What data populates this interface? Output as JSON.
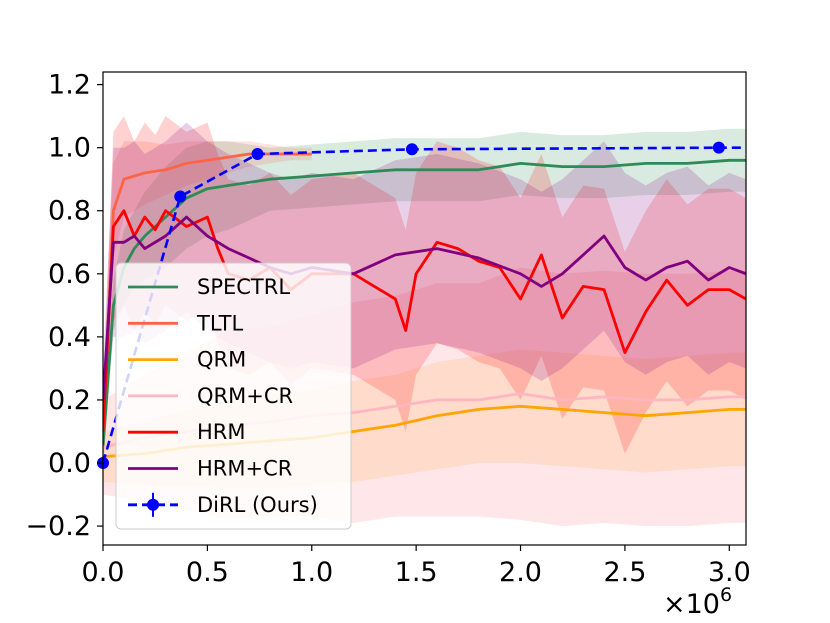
{
  "chart_data": {
    "type": "line",
    "title": "",
    "xlabel": "",
    "ylabel": "",
    "x_multiplier": "×10^6",
    "xlim": [
      0,
      3.08
    ],
    "ylim": [
      -0.26,
      1.24
    ],
    "x_ticks": [
      "0.0",
      "0.5",
      "1.0",
      "1.5",
      "2.0",
      "2.5",
      "3.0"
    ],
    "y_ticks": [
      "−0.2",
      "0.0",
      "0.2",
      "0.4",
      "0.6",
      "0.8",
      "1.0",
      "1.2"
    ],
    "legend_position": "lower-left",
    "grid": false,
    "series": [
      {
        "name": "SPECTRL",
        "color": "#2e8b57",
        "x": [
          0.0,
          0.05,
          0.1,
          0.15,
          0.2,
          0.3,
          0.4,
          0.5,
          0.6,
          0.7,
          0.8,
          1.0,
          1.2,
          1.4,
          1.6,
          1.8,
          2.0,
          2.2,
          2.4,
          2.6,
          2.8,
          3.0,
          3.08
        ],
        "y": [
          0.05,
          0.5,
          0.62,
          0.68,
          0.72,
          0.78,
          0.84,
          0.87,
          0.88,
          0.89,
          0.9,
          0.91,
          0.92,
          0.93,
          0.93,
          0.93,
          0.95,
          0.94,
          0.94,
          0.95,
          0.95,
          0.96,
          0.96
        ],
        "band": [
          0.08,
          0.08,
          0.12,
          0.12,
          0.14,
          0.16,
          0.16,
          0.15,
          0.14,
          0.12,
          0.1,
          0.1,
          0.1,
          0.1,
          0.1,
          0.1,
          0.1,
          0.1,
          0.1,
          0.1,
          0.1,
          0.1,
          0.1
        ]
      },
      {
        "name": "TLTL",
        "color": "#ff6347",
        "x": [
          0.0,
          0.05,
          0.1,
          0.2,
          0.3,
          0.4,
          0.5,
          0.6,
          0.7,
          0.8,
          0.9,
          1.0
        ],
        "y": [
          0.1,
          0.8,
          0.9,
          0.92,
          0.93,
          0.95,
          0.96,
          0.97,
          0.98,
          0.98,
          0.98,
          0.98
        ],
        "band": [
          0.08,
          0.15,
          0.12,
          0.1,
          0.08,
          0.07,
          0.06,
          0.05,
          0.04,
          0.03,
          0.02,
          0.02
        ]
      },
      {
        "name": "QRM",
        "color": "#ffa500",
        "x": [
          0.0,
          0.2,
          0.4,
          0.6,
          0.8,
          1.0,
          1.2,
          1.4,
          1.6,
          1.8,
          2.0,
          2.2,
          2.4,
          2.6,
          2.8,
          3.0,
          3.08
        ],
        "y": [
          0.02,
          0.03,
          0.05,
          0.06,
          0.07,
          0.08,
          0.1,
          0.12,
          0.15,
          0.17,
          0.18,
          0.17,
          0.16,
          0.15,
          0.16,
          0.17,
          0.17
        ],
        "band": [
          0.08,
          0.1,
          0.12,
          0.14,
          0.15,
          0.15,
          0.16,
          0.16,
          0.17,
          0.17,
          0.18,
          0.18,
          0.18,
          0.18,
          0.18,
          0.18,
          0.18
        ]
      },
      {
        "name": "QRM+CR",
        "color": "#ffb6c1",
        "x": [
          0.0,
          0.2,
          0.4,
          0.6,
          0.8,
          1.0,
          1.2,
          1.4,
          1.6,
          1.8,
          2.0,
          2.2,
          2.4,
          2.6,
          2.8,
          3.0,
          3.08
        ],
        "y": [
          0.05,
          0.08,
          0.1,
          0.12,
          0.13,
          0.15,
          0.16,
          0.18,
          0.2,
          0.2,
          0.22,
          0.2,
          0.21,
          0.2,
          0.2,
          0.21,
          0.21
        ],
        "band": [
          0.15,
          0.2,
          0.25,
          0.3,
          0.3,
          0.32,
          0.35,
          0.35,
          0.37,
          0.37,
          0.4,
          0.4,
          0.4,
          0.4,
          0.4,
          0.4,
          0.4
        ]
      },
      {
        "name": "HRM",
        "color": "#ff0000",
        "x": [
          0.0,
          0.05,
          0.1,
          0.15,
          0.2,
          0.25,
          0.3,
          0.4,
          0.5,
          0.55,
          0.6,
          0.7,
          0.8,
          0.9,
          1.0,
          1.2,
          1.3,
          1.4,
          1.45,
          1.5,
          1.6,
          1.7,
          1.8,
          1.9,
          2.0,
          2.1,
          2.2,
          2.3,
          2.4,
          2.5,
          2.6,
          2.7,
          2.8,
          2.9,
          3.0,
          3.08
        ],
        "y": [
          0.1,
          0.75,
          0.8,
          0.72,
          0.78,
          0.74,
          0.8,
          0.75,
          0.78,
          0.68,
          0.6,
          0.58,
          0.62,
          0.55,
          0.6,
          0.6,
          0.56,
          0.52,
          0.42,
          0.6,
          0.7,
          0.68,
          0.64,
          0.62,
          0.52,
          0.66,
          0.46,
          0.56,
          0.55,
          0.35,
          0.48,
          0.58,
          0.5,
          0.55,
          0.55,
          0.52
        ],
        "band": [
          0.1,
          0.3,
          0.3,
          0.3,
          0.3,
          0.3,
          0.3,
          0.3,
          0.3,
          0.3,
          0.3,
          0.3,
          0.3,
          0.3,
          0.3,
          0.32,
          0.32,
          0.32,
          0.32,
          0.32,
          0.32,
          0.32,
          0.32,
          0.32,
          0.32,
          0.32,
          0.32,
          0.32,
          0.32,
          0.32,
          0.32,
          0.32,
          0.32,
          0.32,
          0.32,
          0.32
        ]
      },
      {
        "name": "HRM+CR",
        "color": "#800080",
        "x": [
          0.0,
          0.05,
          0.1,
          0.15,
          0.2,
          0.3,
          0.4,
          0.5,
          0.6,
          0.7,
          0.8,
          0.9,
          1.0,
          1.2,
          1.4,
          1.6,
          1.8,
          2.0,
          2.1,
          2.2,
          2.3,
          2.4,
          2.5,
          2.6,
          2.7,
          2.8,
          2.9,
          3.0,
          3.08
        ],
        "y": [
          0.2,
          0.7,
          0.7,
          0.72,
          0.68,
          0.72,
          0.78,
          0.72,
          0.68,
          0.65,
          0.62,
          0.6,
          0.62,
          0.6,
          0.66,
          0.68,
          0.65,
          0.6,
          0.56,
          0.6,
          0.66,
          0.72,
          0.62,
          0.58,
          0.62,
          0.64,
          0.58,
          0.62,
          0.6
        ],
        "band": [
          0.1,
          0.3,
          0.3,
          0.3,
          0.3,
          0.3,
          0.3,
          0.3,
          0.3,
          0.3,
          0.3,
          0.3,
          0.3,
          0.3,
          0.3,
          0.3,
          0.3,
          0.3,
          0.3,
          0.3,
          0.3,
          0.3,
          0.3,
          0.3,
          0.3,
          0.3,
          0.3,
          0.3,
          0.3
        ]
      },
      {
        "name": "DiRL (Ours)",
        "color": "#0000ff",
        "x": [
          0.0,
          0.37,
          0.74,
          1.48,
          2.95,
          3.08
        ],
        "y": [
          0.0,
          0.845,
          0.98,
          0.995,
          1.0,
          1.0
        ],
        "markers": true,
        "dashed": true
      }
    ]
  }
}
